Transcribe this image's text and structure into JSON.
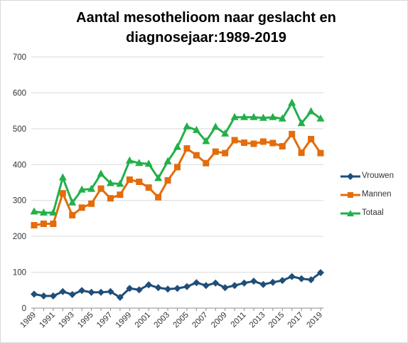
{
  "chart_data": {
    "type": "line",
    "title_lines": [
      "Aantal mesothelioom  naar geslacht en",
      "diagnosejaar:1989-2019"
    ],
    "xlabel": "",
    "ylabel": "",
    "ylim": [
      0,
      700
    ],
    "yticks": [
      0,
      100,
      200,
      300,
      400,
      500,
      600,
      700
    ],
    "x_labels": [
      "1989",
      "1991",
      "1993",
      "1995",
      "1997",
      "1999",
      "2001",
      "2003",
      "2005",
      "2007",
      "2009",
      "2011",
      "2013",
      "2015",
      "2017",
      "2019"
    ],
    "x": [
      1989,
      1990,
      1991,
      1992,
      1993,
      1994,
      1995,
      1996,
      1997,
      1998,
      1999,
      2000,
      2001,
      2002,
      2003,
      2004,
      2005,
      2006,
      2007,
      2008,
      2009,
      2010,
      2011,
      2012,
      2013,
      2014,
      2015,
      2016,
      2017,
      2018,
      2019
    ],
    "grid": "horizontal",
    "legend_position": "right",
    "series": [
      {
        "name": "Vrouwen",
        "color": "#1f4e79",
        "marker": "diamond",
        "values": [
          39,
          34,
          34,
          46,
          38,
          49,
          44,
          44,
          46,
          30,
          55,
          51,
          65,
          57,
          53,
          55,
          60,
          71,
          63,
          70,
          57,
          63,
          70,
          75,
          66,
          72,
          77,
          88,
          82,
          79,
          99
        ]
      },
      {
        "name": "Mannen",
        "color": "#e46c0a",
        "marker": "square",
        "values": [
          231,
          235,
          235,
          320,
          259,
          280,
          291,
          333,
          306,
          316,
          358,
          352,
          336,
          309,
          356,
          393,
          445,
          426,
          404,
          436,
          432,
          468,
          461,
          458,
          464,
          460,
          451,
          485,
          433,
          471,
          432
        ]
      },
      {
        "name": "Totaal",
        "color": "#22b04b",
        "marker": "triangle",
        "values": [
          269,
          266,
          266,
          364,
          294,
          330,
          332,
          374,
          348,
          346,
          411,
          404,
          402,
          362,
          409,
          449,
          506,
          496,
          465,
          505,
          486,
          532,
          532,
          532,
          530,
          532,
          528,
          572,
          515,
          548,
          528
        ]
      }
    ]
  }
}
